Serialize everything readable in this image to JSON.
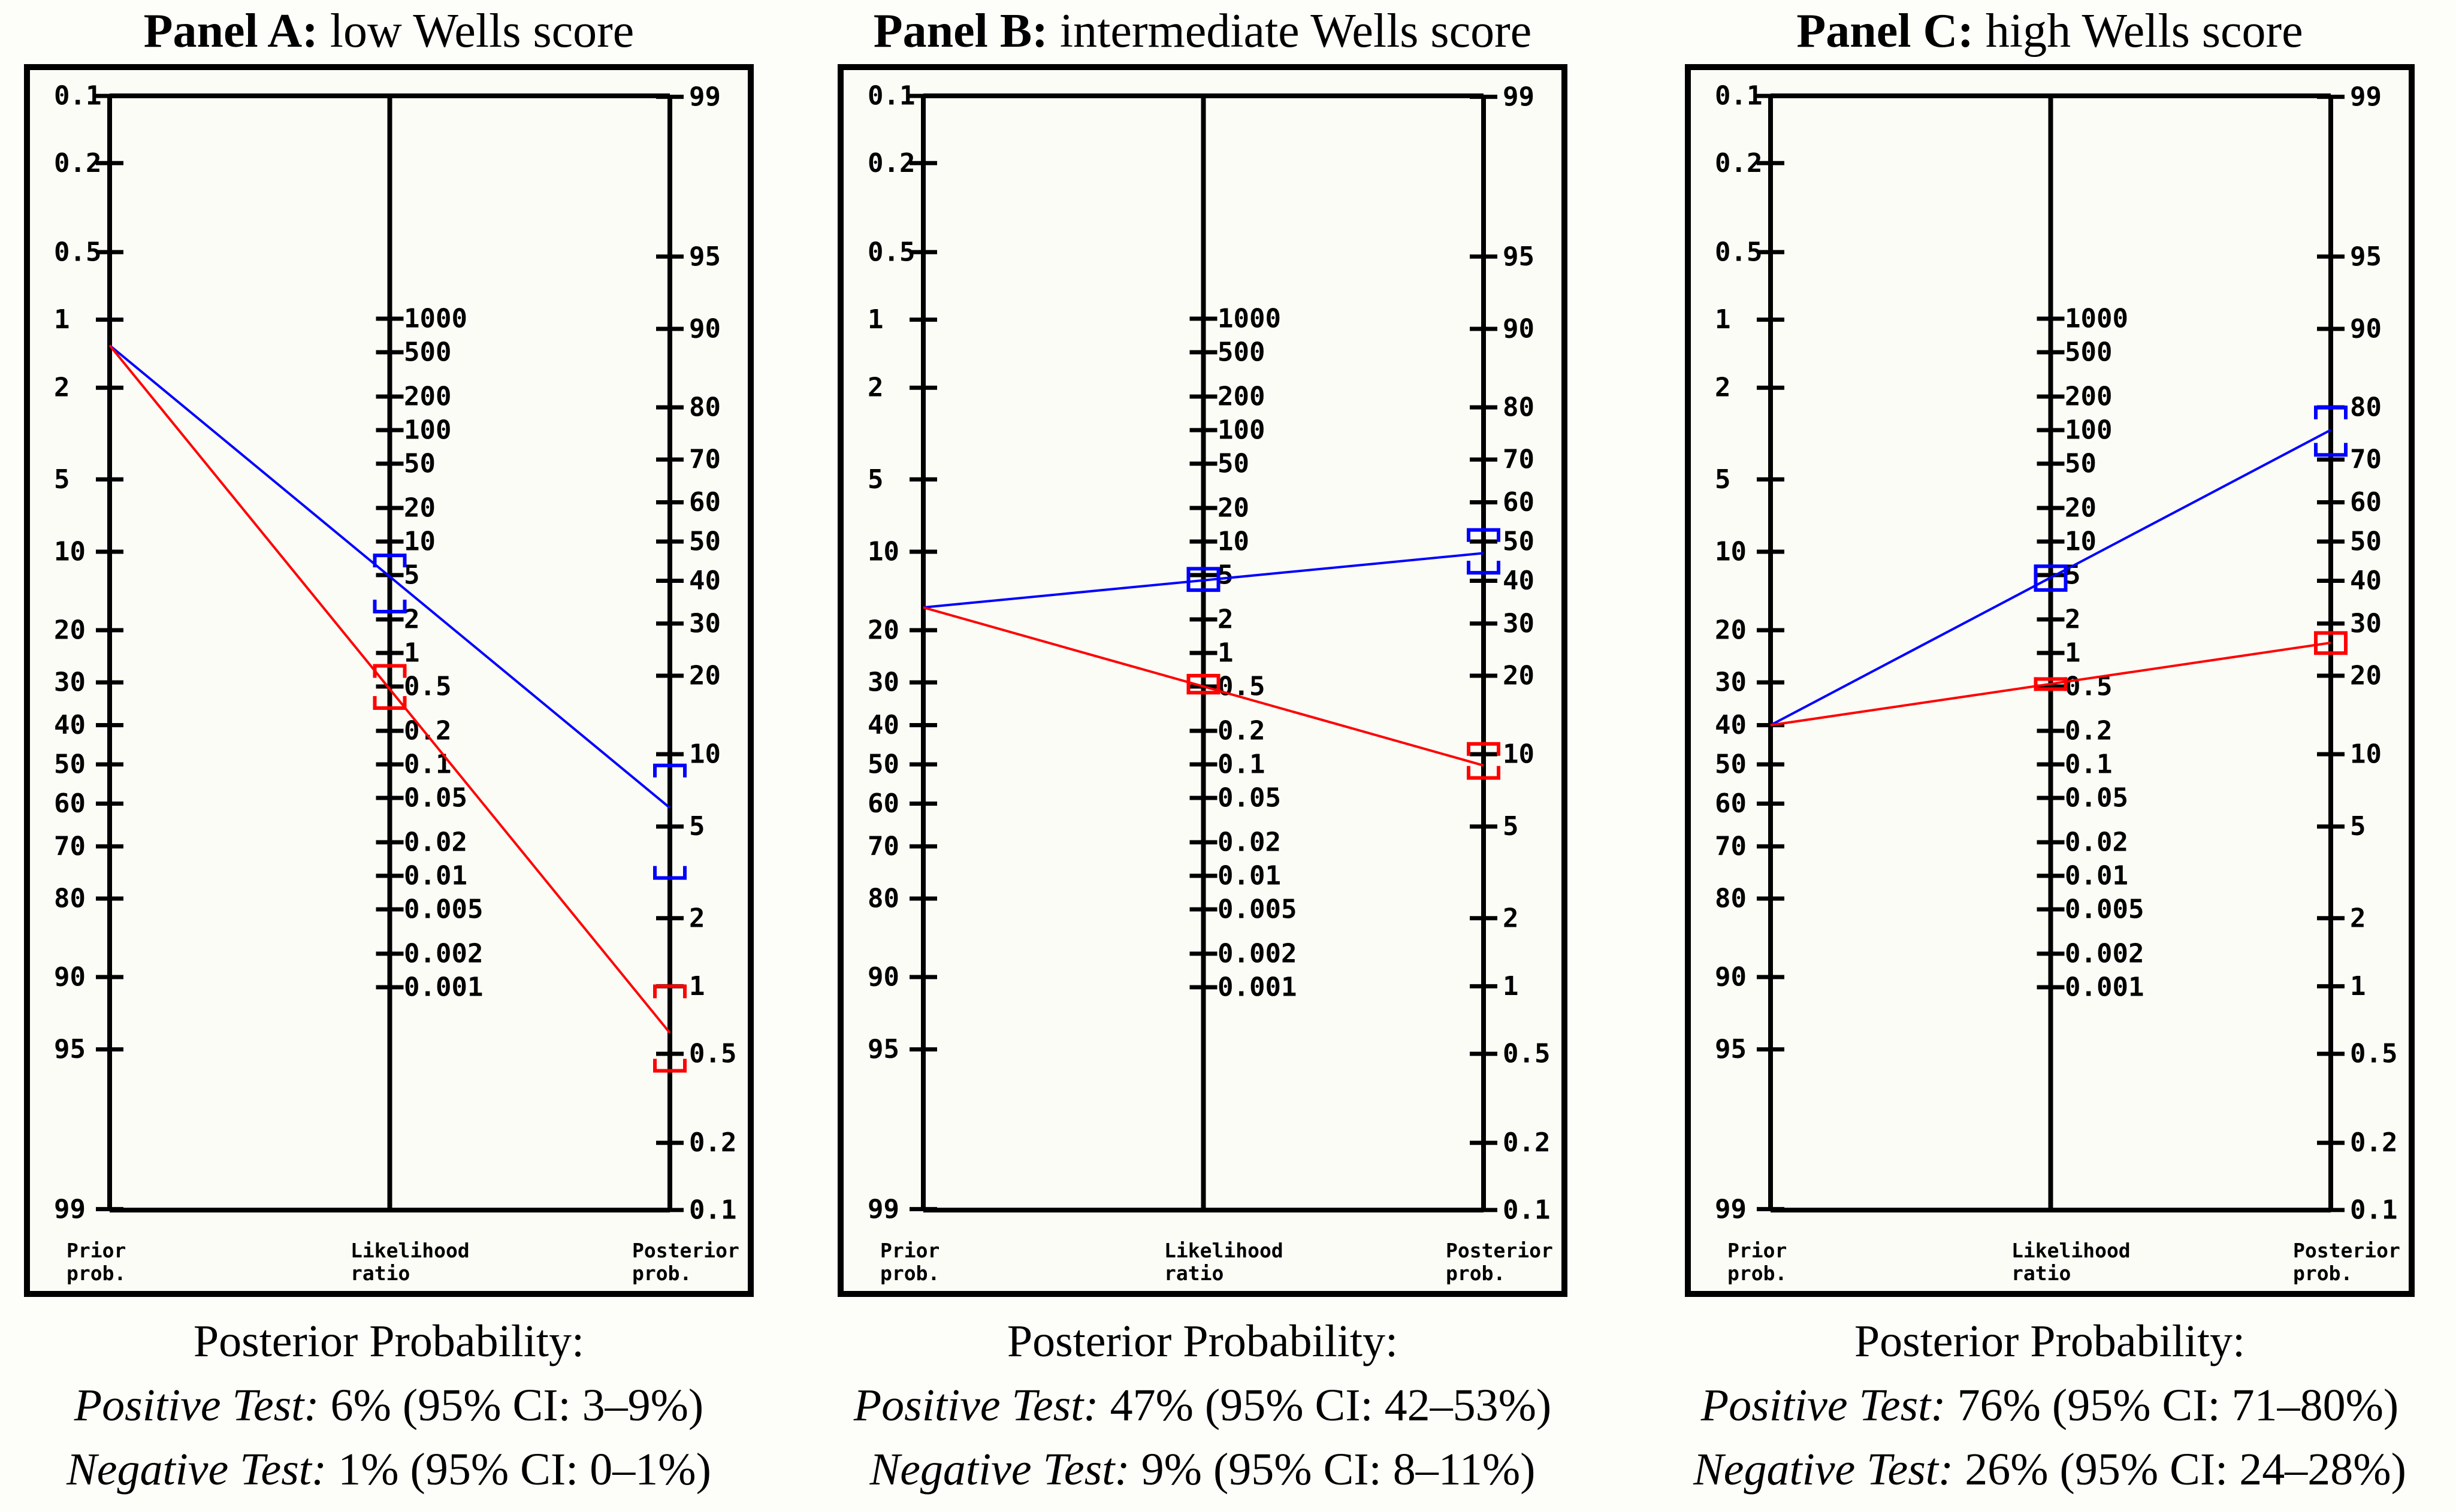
{
  "colors": {
    "positive_line": "#0000ff",
    "negative_line": "#ff0000",
    "panel_bg": "#fcfcf7",
    "ink": "#000000"
  },
  "panels": [
    {
      "title_bold": "Panel A:",
      "title_rest": " low Wells score",
      "caption_title": "Posterior Probability:",
      "positive_label": "Positive Test:",
      "positive_value": " 6% (95% CI: 3–9%)",
      "negative_label": "Negative Test:",
      "negative_value": " 1% (95% CI: 0–1%)"
    },
    {
      "title_bold": "Panel B:",
      "title_rest": " intermediate Wells score",
      "caption_title": "Posterior Probability:",
      "positive_label": "Positive Test:",
      "positive_value": " 47% (95% CI: 42–53%)",
      "negative_label": "Negative Test:",
      "negative_value": " 9% (95% CI: 8–11%)"
    },
    {
      "title_bold": "Panel C:",
      "title_rest": " high Wells score",
      "caption_title": "Posterior Probability:",
      "positive_label": "Positive Test:",
      "positive_value": " 76% (95% CI: 71–80%)",
      "negative_label": "Negative Test:",
      "negative_value": " 26% (95% CI: 24–28%)"
    }
  ],
  "chart_data": {
    "type": "line",
    "subtype": "fagan-nomogram",
    "scale": "logit",
    "axes": {
      "prior_prob_ticks": [
        "0.1",
        "0.2",
        "0.5",
        "1",
        "2",
        "5",
        "10",
        "20",
        "30",
        "40",
        "50",
        "60",
        "70",
        "80",
        "90",
        "95",
        "99"
      ],
      "likelihood_ratio_ticks": [
        "1000",
        "500",
        "200",
        "100",
        "50",
        "20",
        "10",
        "5",
        "2",
        "1",
        "0.5",
        "0.2",
        "0.1",
        "0.05",
        "0.02",
        "0.01",
        "0.005",
        "0.002",
        "0.001"
      ],
      "posterior_prob_ticks": [
        "99",
        "95",
        "90",
        "80",
        "70",
        "60",
        "50",
        "40",
        "30",
        "20",
        "10",
        "5",
        "2",
        "1",
        "0.5",
        "0.2",
        "0.1"
      ],
      "axis_titles": [
        [
          "Prior",
          "prob."
        ],
        [
          "Likelihood",
          "ratio"
        ],
        [
          "Posterior",
          "prob."
        ]
      ],
      "prior_axis_range_percent": [
        0.1,
        99
      ],
      "posterior_axis_range_percent": [
        99,
        0.1
      ],
      "likelihood_axis_range": [
        1000,
        0.001
      ]
    },
    "legend": {
      "positive_test_color": "#0000ff",
      "negative_test_color": "#ff0000"
    },
    "panels": [
      {
        "panel": "A",
        "wells_score": "low",
        "prior_percent": 1.3,
        "positive": {
          "posterior_percent": 6,
          "ci_percent": [
            3,
            9
          ],
          "plot_point": 6,
          "plot_ci": [
            3,
            9
          ]
        },
        "negative": {
          "posterior_percent": 1,
          "ci_percent": [
            0,
            1
          ],
          "plot_point": 0.62,
          "plot_ci": [
            0.42,
            1.0
          ]
        },
        "lr_positive_approx": 4.9,
        "lr_negative_approx": 0.48
      },
      {
        "panel": "B",
        "wells_score": "intermediate",
        "prior_percent": 16.5,
        "positive": {
          "posterior_percent": 47,
          "ci_percent": [
            42,
            53
          ],
          "plot_point": 47,
          "plot_ci": [
            42,
            53
          ]
        },
        "negative": {
          "posterior_percent": 9,
          "ci_percent": [
            8,
            11
          ],
          "plot_point": 9,
          "plot_ci": [
            8,
            11
          ]
        },
        "lr_positive_approx": 4.5,
        "lr_negative_approx": 0.5
      },
      {
        "panel": "C",
        "wells_score": "high",
        "prior_percent": 40,
        "positive": {
          "posterior_percent": 76,
          "ci_percent": [
            71,
            80
          ],
          "plot_point": 76,
          "plot_ci": [
            71,
            80
          ]
        },
        "negative": {
          "posterior_percent": 26,
          "ci_percent": [
            24,
            28
          ],
          "plot_point": 26,
          "plot_ci": [
            24,
            28
          ]
        },
        "lr_positive_approx": 4.75,
        "lr_negative_approx": 0.53
      }
    ]
  }
}
